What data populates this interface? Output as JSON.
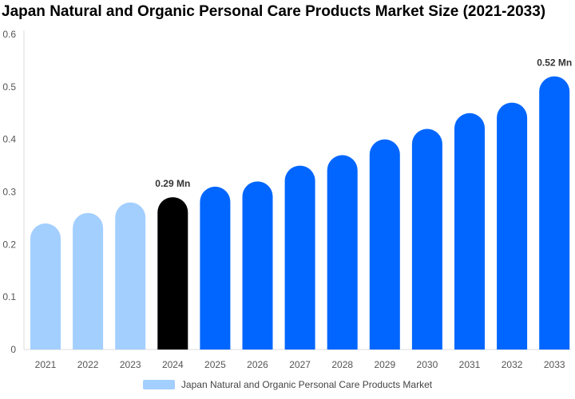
{
  "chart_data": {
    "type": "bar",
    "title": "Japan Natural and Organic Personal Care Products Market Size (2021-2033)",
    "categories": [
      "2021",
      "2022",
      "2023",
      "2024",
      "2025",
      "2026",
      "2027",
      "2028",
      "2029",
      "2030",
      "2031",
      "2032",
      "2033"
    ],
    "series": [
      {
        "name": "Japan Natural and Organic Personal Care Products Market",
        "values": [
          0.24,
          0.26,
          0.28,
          0.29,
          0.31,
          0.32,
          0.35,
          0.37,
          0.4,
          0.42,
          0.45,
          0.47,
          0.52
        ]
      }
    ],
    "ylim": [
      0,
      0.6
    ],
    "yticks": [
      "0",
      "0.1",
      "0.2",
      "0.3",
      "0.4",
      "0.5",
      "0.6"
    ],
    "data_labels": [
      {
        "category": "2024",
        "text": "0.29 Mn"
      },
      {
        "category": "2033",
        "text": "0.52 Mn"
      }
    ],
    "colors": {
      "historical": "#a3cfff",
      "current": "#000000",
      "forecast": "#0066ff"
    },
    "legend_position": "bottom",
    "grid": false
  }
}
